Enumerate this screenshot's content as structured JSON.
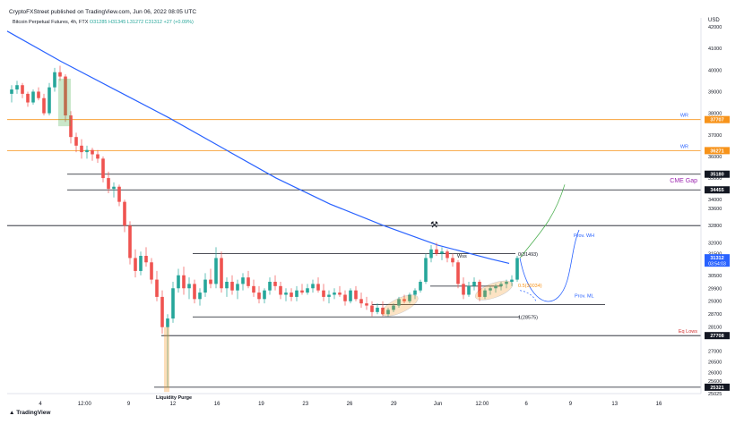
{
  "header": {
    "published": "CryptoFXStreet published on TradingView.com, Jun 06, 2022 08:05 UTC",
    "symbol": "Bitcoin Perpetual Futures, 4h, FTX",
    "ohlc": "O31285 H31345 L31272 C31312 +27 (+0.09%)"
  },
  "footer": {
    "logo_text": "TradingView"
  },
  "colors": {
    "background": "#ffffff",
    "candle_up": "#26a69a",
    "candle_down": "#ef5350",
    "ma": "#2962ff",
    "orange": "#f7931a",
    "black": "#131722",
    "green": "#4caf50",
    "blue": "#2962ff",
    "purple": "#9c27b0",
    "red": "#d32f2f"
  },
  "chart_data": {
    "type": "candlestick",
    "title": "Bitcoin Perpetual Futures, 4h, FTX",
    "currency": "USD",
    "ylim": [
      25025,
      42000
    ],
    "y_ticks": [
      42000,
      41000,
      40000,
      39000,
      38000,
      37000,
      36000,
      35000,
      34000,
      33600,
      32800,
      32000,
      31500,
      30500,
      29900,
      29300,
      28700,
      28100,
      27700,
      27000,
      26500,
      26000,
      25600,
      25025
    ],
    "x_ticks": [
      "4",
      "12:00",
      "9",
      "12",
      "16",
      "19",
      "23",
      "26",
      "29",
      "Jun",
      "12:00",
      "6",
      "9",
      "13",
      "16"
    ],
    "price_labels": [
      {
        "text": "37707",
        "value": 37707,
        "color": "orange"
      },
      {
        "text": "36271",
        "value": 36271,
        "color": "orange"
      },
      {
        "text": "35180",
        "value": 35180,
        "color": "black"
      },
      {
        "text": "34455",
        "value": 34455,
        "color": "black"
      },
      {
        "text": "31312",
        "sub": "03:54:03",
        "value": 31312,
        "color": "blue"
      },
      {
        "text": "27708",
        "value": 27708,
        "color": "black"
      },
      {
        "text": "25321",
        "value": 25321,
        "color": "black"
      }
    ],
    "horizontal_levels": [
      {
        "value": 37707,
        "label": "WR",
        "color": "orange"
      },
      {
        "value": 36271,
        "label": "WR",
        "color": "orange"
      },
      {
        "value": 35180,
        "label": "",
        "color": "black"
      },
      {
        "value": 34455,
        "label": "CME Gap",
        "color": "black"
      },
      {
        "value": 32800,
        "label": "",
        "color": "black"
      },
      {
        "value": 31500,
        "label": "",
        "color": "black"
      },
      {
        "value": 30000,
        "label": "",
        "color": "black"
      },
      {
        "value": 29150,
        "label": "",
        "color": "black"
      },
      {
        "value": 28575,
        "label": "",
        "color": "black"
      },
      {
        "value": 27708,
        "label": "Eq Lows",
        "color": "red"
      },
      {
        "value": 25321,
        "label": "",
        "color": "black"
      }
    ],
    "fib": [
      {
        "text": "0(31493)",
        "value": 31493
      },
      {
        "text": "0.5(30034)",
        "value": 30034
      },
      {
        "text": "1(28575)",
        "value": 28575
      }
    ],
    "annotations": [
      {
        "text": "WR",
        "value": 37707,
        "color": "blue"
      },
      {
        "text": "WR",
        "value": 36271,
        "color": "blue"
      },
      {
        "text": "CME Gap",
        "value": 34455,
        "color": "purple"
      },
      {
        "text": "Prov. WH",
        "value": 32150,
        "color": "blue"
      },
      {
        "text": "Prov. ML",
        "value": 29350,
        "color": "blue"
      },
      {
        "text": "Eq Lows",
        "value": 27708,
        "color": "red"
      },
      {
        "text": "Liquidity Purge",
        "value": 25100,
        "color": "black"
      },
      {
        "text": "Wss",
        "value": 31200,
        "color": "black"
      }
    ],
    "ma_series": [
      [
        0,
        41800
      ],
      [
        60,
        40400
      ],
      [
        120,
        39100
      ],
      [
        180,
        37800
      ],
      [
        240,
        36400
      ],
      [
        300,
        35000
      ],
      [
        360,
        33800
      ],
      [
        420,
        32800
      ],
      [
        480,
        31900
      ],
      [
        540,
        31250
      ],
      [
        560,
        31050
      ]
    ],
    "candles": [
      [
        5,
        38900,
        39300,
        38500,
        39100
      ],
      [
        11,
        39100,
        39500,
        38900,
        39300
      ],
      [
        17,
        39300,
        39400,
        38700,
        38900
      ],
      [
        23,
        38900,
        39000,
        38300,
        38500
      ],
      [
        29,
        38500,
        39100,
        38400,
        39000
      ],
      [
        35,
        39000,
        39200,
        38600,
        38700
      ],
      [
        41,
        38700,
        38900,
        37900,
        38000
      ],
      [
        47,
        38000,
        39400,
        37900,
        39200
      ],
      [
        53,
        39200,
        40100,
        39000,
        39900
      ],
      [
        59,
        39900,
        40200,
        39500,
        39700
      ],
      [
        65,
        39700,
        39800,
        37600,
        37900
      ],
      [
        71,
        37900,
        38100,
        36600,
        36900
      ],
      [
        77,
        36900,
        37100,
        36200,
        36500
      ],
      [
        83,
        36500,
        36800,
        35900,
        36200
      ],
      [
        89,
        36200,
        36500,
        35900,
        36300
      ],
      [
        95,
        36300,
        36400,
        35800,
        36100
      ],
      [
        101,
        36100,
        36300,
        35700,
        35900
      ],
      [
        107,
        35900,
        36000,
        34800,
        35000
      ],
      [
        113,
        35000,
        35300,
        34300,
        34500
      ],
      [
        119,
        34500,
        34800,
        34100,
        34600
      ],
      [
        125,
        34600,
        34700,
        33700,
        33900
      ],
      [
        131,
        33900,
        34000,
        32500,
        32800
      ],
      [
        137,
        32800,
        33000,
        31000,
        31300
      ],
      [
        143,
        31300,
        31700,
        30400,
        30700
      ],
      [
        149,
        30700,
        31600,
        30500,
        31400
      ],
      [
        155,
        31400,
        31800,
        30900,
        31100
      ],
      [
        161,
        31100,
        31300,
        30100,
        30300
      ],
      [
        167,
        30300,
        30700,
        29300,
        29500
      ],
      [
        173,
        29500,
        29800,
        27800,
        28100
      ],
      [
        179,
        28100,
        28700,
        25300,
        28500
      ],
      [
        185,
        28500,
        30200,
        28300,
        29900
      ],
      [
        191,
        29900,
        30800,
        29700,
        30500
      ],
      [
        197,
        30500,
        30900,
        29600,
        29900
      ],
      [
        203,
        29900,
        30400,
        29400,
        30100
      ],
      [
        209,
        30100,
        30300,
        29200,
        29400
      ],
      [
        215,
        29400,
        29900,
        29100,
        29700
      ],
      [
        221,
        29700,
        30600,
        29500,
        30300
      ],
      [
        227,
        30300,
        30800,
        29900,
        30100
      ],
      [
        233,
        30100,
        31800,
        29900,
        31300
      ],
      [
        239,
        31300,
        31600,
        29700,
        29900
      ],
      [
        245,
        29900,
        30400,
        29500,
        30200
      ],
      [
        251,
        30200,
        30500,
        29600,
        29800
      ],
      [
        257,
        29800,
        30300,
        29400,
        30100
      ],
      [
        263,
        30100,
        30600,
        29800,
        30400
      ],
      [
        269,
        30400,
        30700,
        29900,
        30000
      ],
      [
        275,
        30000,
        30300,
        29500,
        29700
      ],
      [
        281,
        29700,
        30000,
        29200,
        29400
      ],
      [
        287,
        29400,
        29900,
        29200,
        29800
      ],
      [
        293,
        29800,
        30400,
        29600,
        30200
      ],
      [
        299,
        30200,
        30500,
        29800,
        30000
      ],
      [
        305,
        30000,
        30200,
        29400,
        29600
      ],
      [
        311,
        29600,
        29900,
        29300,
        29700
      ],
      [
        317,
        29700,
        29900,
        29300,
        29500
      ],
      [
        323,
        29500,
        30000,
        29300,
        29800
      ],
      [
        329,
        29800,
        30100,
        29600,
        29700
      ],
      [
        335,
        29700,
        30100,
        29600,
        29900
      ],
      [
        341,
        29900,
        30300,
        29700,
        30100
      ],
      [
        347,
        30100,
        30400,
        29700,
        29800
      ],
      [
        353,
        29800,
        30100,
        29300,
        29500
      ],
      [
        359,
        29500,
        29800,
        29200,
        29600
      ],
      [
        365,
        29600,
        29900,
        29400,
        29700
      ],
      [
        371,
        29700,
        30000,
        29500,
        29600
      ],
      [
        377,
        29600,
        29800,
        29100,
        29300
      ],
      [
        383,
        29300,
        29900,
        29200,
        29800
      ],
      [
        389,
        29800,
        30000,
        29300,
        29400
      ],
      [
        395,
        29400,
        29700,
        29000,
        29200
      ],
      [
        401,
        29200,
        29500,
        28900,
        29100
      ],
      [
        407,
        29100,
        29300,
        28600,
        28800
      ],
      [
        413,
        28800,
        29200,
        28700,
        29000
      ],
      [
        419,
        29000,
        29300,
        28600,
        28700
      ],
      [
        425,
        28700,
        29000,
        28600,
        28900
      ],
      [
        431,
        28900,
        29200,
        28800,
        29100
      ],
      [
        437,
        29100,
        29500,
        29000,
        29400
      ],
      [
        443,
        29400,
        29600,
        29200,
        29300
      ],
      [
        449,
        29300,
        29700,
        29200,
        29600
      ],
      [
        455,
        29600,
        29900,
        29400,
        29800
      ],
      [
        461,
        29800,
        30300,
        29700,
        30200
      ],
      [
        467,
        30200,
        31500,
        30100,
        31300
      ],
      [
        473,
        31300,
        31900,
        31100,
        31700
      ],
      [
        479,
        31700,
        32000,
        31400,
        31500
      ],
      [
        485,
        31500,
        31800,
        31200,
        31600
      ],
      [
        491,
        31600,
        31700,
        31100,
        31300
      ],
      [
        497,
        31300,
        31500,
        30900,
        31100
      ],
      [
        503,
        31100,
        31200,
        29900,
        30100
      ],
      [
        509,
        30100,
        30400,
        29400,
        29600
      ],
      [
        515,
        29600,
        30200,
        29500,
        30000
      ],
      [
        521,
        30000,
        30400,
        29800,
        30200
      ],
      [
        527,
        30200,
        30300,
        29300,
        29500
      ],
      [
        533,
        29500,
        29900,
        29400,
        29800
      ],
      [
        539,
        29800,
        30000,
        29600,
        29900
      ],
      [
        545,
        29900,
        30100,
        29700,
        30000
      ],
      [
        551,
        30000,
        30200,
        29800,
        30100
      ],
      [
        557,
        30100,
        30300,
        29900,
        30200
      ],
      [
        563,
        30200,
        30500,
        30000,
        30300
      ],
      [
        569,
        30300,
        31400,
        30200,
        31300
      ]
    ]
  }
}
